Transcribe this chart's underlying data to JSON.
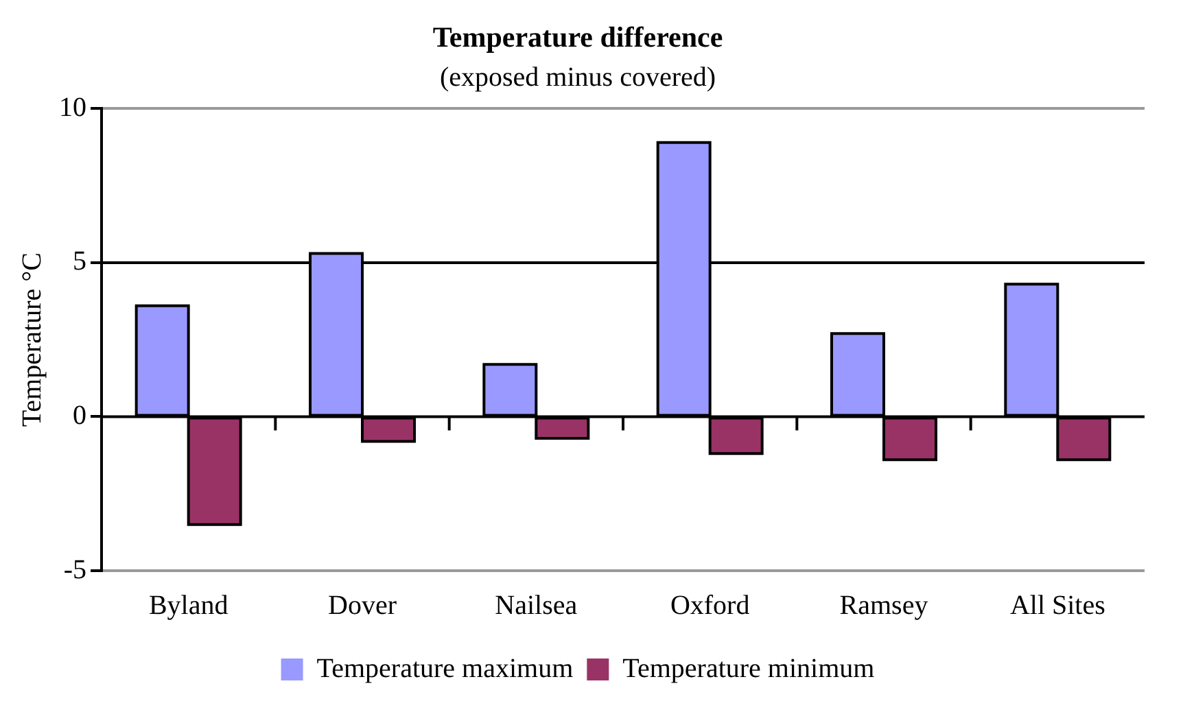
{
  "chart_data": {
    "type": "bar",
    "title": "Temperature difference",
    "subtitle": "(exposed minus covered)",
    "ylabel": "Temperature °C",
    "categories": [
      "Byland",
      "Dover",
      "Nailsea",
      "Oxford",
      "Ramsey",
      "All Sites"
    ],
    "series": [
      {
        "name": "Temperature maximum",
        "color": "#9999ff",
        "values": [
          3.6,
          5.3,
          1.7,
          8.9,
          2.7,
          4.3
        ]
      },
      {
        "name": "Temperature minimum",
        "color": "#993366",
        "values": [
          -3.5,
          -0.8,
          -0.7,
          -1.2,
          -1.4,
          -1.4
        ]
      }
    ],
    "ylim": [
      -5,
      10
    ],
    "yticks": [
      -5,
      0,
      5,
      10
    ],
    "grid": "y",
    "legend": "bottom"
  }
}
